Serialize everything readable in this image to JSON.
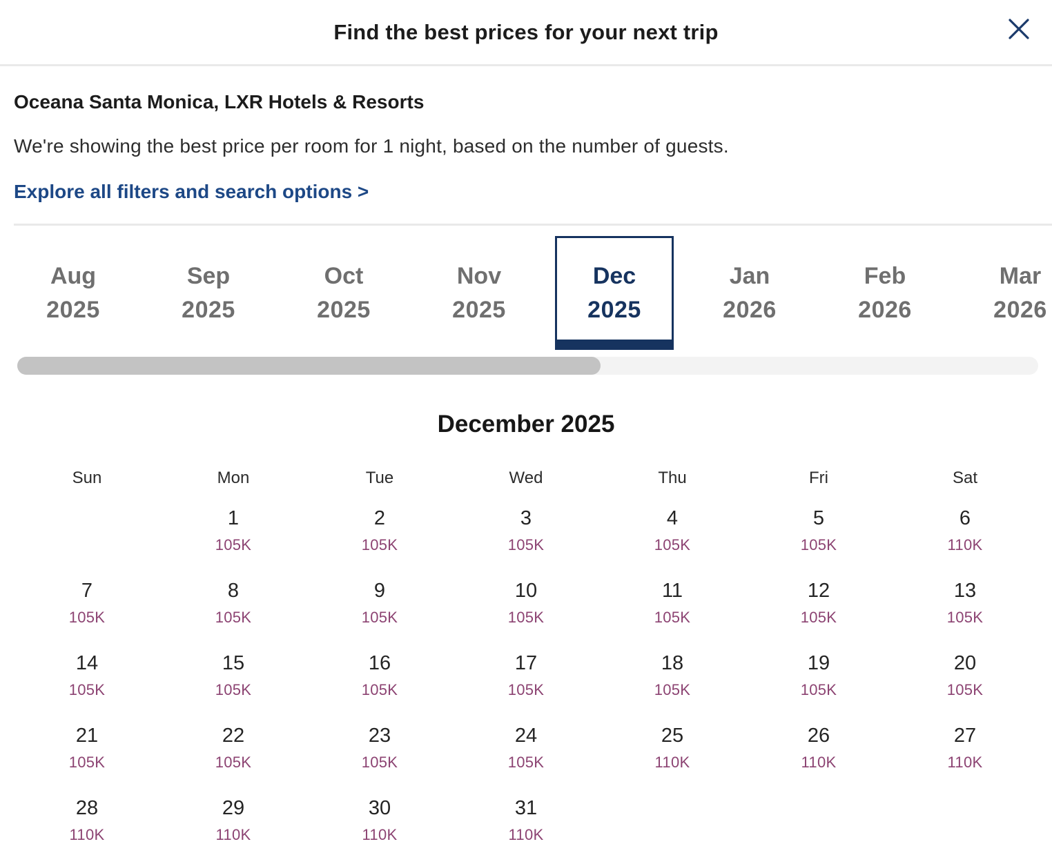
{
  "header": {
    "title": "Find the best prices for your next trip"
  },
  "intro": {
    "hotel_name": "Oceana Santa Monica, LXR Hotels & Resorts",
    "description": "We're showing the best price per room for 1 night, based on the number of guests.",
    "filters_link": "Explore all filters and search options >"
  },
  "month_tabs": [
    {
      "month": "Aug",
      "year": "2025",
      "selected": false
    },
    {
      "month": "Sep",
      "year": "2025",
      "selected": false
    },
    {
      "month": "Oct",
      "year": "2025",
      "selected": false
    },
    {
      "month": "Nov",
      "year": "2025",
      "selected": false
    },
    {
      "month": "Dec",
      "year": "2025",
      "selected": true
    },
    {
      "month": "Jan",
      "year": "2026",
      "selected": false
    },
    {
      "month": "Feb",
      "year": "2026",
      "selected": false
    },
    {
      "month": "Mar",
      "year": "2026",
      "selected": false
    }
  ],
  "calendar": {
    "title": "December 2025",
    "weekday_headers": [
      "Sun",
      "Mon",
      "Tue",
      "Wed",
      "Thu",
      "Fri",
      "Sat"
    ],
    "weeks": [
      [
        null,
        {
          "day": "1",
          "price": "105K"
        },
        {
          "day": "2",
          "price": "105K"
        },
        {
          "day": "3",
          "price": "105K"
        },
        {
          "day": "4",
          "price": "105K"
        },
        {
          "day": "5",
          "price": "105K"
        },
        {
          "day": "6",
          "price": "110K"
        }
      ],
      [
        {
          "day": "7",
          "price": "105K"
        },
        {
          "day": "8",
          "price": "105K"
        },
        {
          "day": "9",
          "price": "105K"
        },
        {
          "day": "10",
          "price": "105K"
        },
        {
          "day": "11",
          "price": "105K"
        },
        {
          "day": "12",
          "price": "105K"
        },
        {
          "day": "13",
          "price": "105K"
        }
      ],
      [
        {
          "day": "14",
          "price": "105K"
        },
        {
          "day": "15",
          "price": "105K"
        },
        {
          "day": "16",
          "price": "105K"
        },
        {
          "day": "17",
          "price": "105K"
        },
        {
          "day": "18",
          "price": "105K"
        },
        {
          "day": "19",
          "price": "105K"
        },
        {
          "day": "20",
          "price": "105K"
        }
      ],
      [
        {
          "day": "21",
          "price": "105K"
        },
        {
          "day": "22",
          "price": "105K"
        },
        {
          "day": "23",
          "price": "105K"
        },
        {
          "day": "24",
          "price": "105K"
        },
        {
          "day": "25",
          "price": "110K"
        },
        {
          "day": "26",
          "price": "110K"
        },
        {
          "day": "27",
          "price": "110K"
        }
      ],
      [
        {
          "day": "28",
          "price": "110K"
        },
        {
          "day": "29",
          "price": "110K"
        },
        {
          "day": "30",
          "price": "110K"
        },
        {
          "day": "31",
          "price": "110K"
        },
        null,
        null,
        null
      ]
    ]
  },
  "icons": {
    "close": "close-icon"
  },
  "colors": {
    "accent_navy": "#16335f",
    "link_blue": "#1d4886",
    "tab_gray": "#6f6f6f",
    "price_plum": "#8c4372",
    "divider_gray": "#e9e9e9",
    "scroll_thumb_gray": "#c3c3c3"
  }
}
